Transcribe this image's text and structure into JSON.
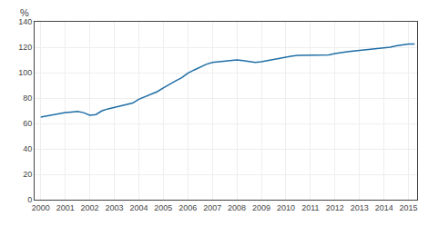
{
  "chart_data": {
    "type": "line",
    "ylabel": "%",
    "x": [
      2000.0,
      2000.25,
      2000.5,
      2000.75,
      2001.0,
      2001.25,
      2001.5,
      2001.75,
      2002.0,
      2002.25,
      2002.5,
      2002.75,
      2003.0,
      2003.25,
      2003.5,
      2003.75,
      2004.0,
      2004.25,
      2004.5,
      2004.75,
      2005.0,
      2005.25,
      2005.5,
      2005.75,
      2006.0,
      2006.25,
      2006.5,
      2006.75,
      2007.0,
      2007.25,
      2007.5,
      2007.75,
      2008.0,
      2008.25,
      2008.5,
      2008.75,
      2009.0,
      2009.25,
      2009.5,
      2009.75,
      2010.0,
      2010.25,
      2010.5,
      2010.75,
      2011.0,
      2011.25,
      2011.5,
      2011.75,
      2012.0,
      2012.25,
      2012.5,
      2012.75,
      2013.0,
      2013.25,
      2013.5,
      2013.75,
      2014.0,
      2014.25,
      2014.5,
      2014.75,
      2015.0,
      2015.25
    ],
    "values": [
      65.0,
      66.0,
      67.0,
      67.5,
      68.5,
      69.0,
      69.5,
      68.5,
      66.5,
      67.0,
      70.0,
      71.5,
      72.5,
      73.5,
      74.5,
      76.0,
      79.0,
      81.0,
      83.0,
      85.0,
      88.0,
      91.0,
      93.5,
      96.0,
      99.5,
      102.0,
      104.5,
      106.5,
      108.0,
      108.5,
      109.0,
      109.5,
      110.0,
      109.5,
      108.5,
      108.0,
      108.5,
      109.5,
      110.5,
      111.0,
      112.5,
      113.0,
      113.5,
      113.5,
      113.5,
      113.5,
      113.5,
      114.0,
      115.0,
      116.0,
      116.5,
      117.0,
      117.5,
      118.0,
      118.0,
      118.5,
      119.0,
      120.0,
      121.0,
      122.0,
      122.5,
      122.5
    ],
    "color": "#1f6ea6",
    "xlim": [
      1999.75,
      2015.35
    ],
    "xticks": [
      2000,
      2001,
      2002,
      2003,
      2004,
      2005,
      2006,
      2007,
      2008,
      2009,
      2010,
      2011,
      2012,
      2013,
      2014,
      2015
    ],
    "ylim": [
      0,
      140
    ],
    "yticks": [
      0,
      20,
      40,
      60,
      80,
      100,
      120,
      140
    ],
    "grid": true
  }
}
